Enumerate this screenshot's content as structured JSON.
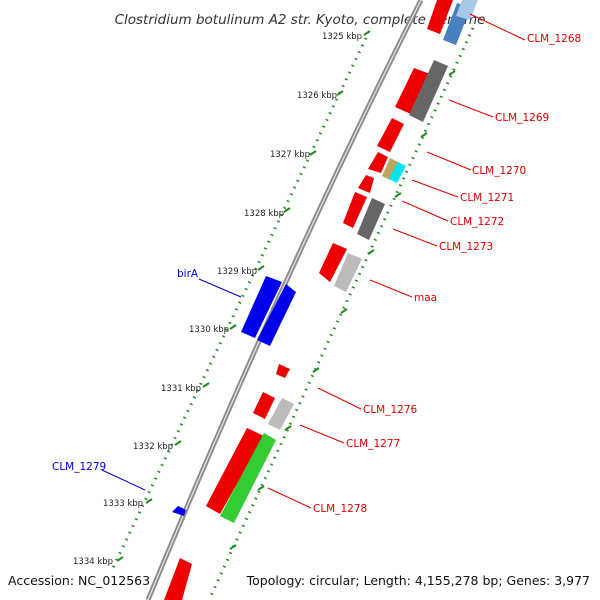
{
  "title": "Clostridium botulinum A2 str. Kyoto, complete genome",
  "accession": "Accession: NC_012563",
  "topology": "Topology: circular; Length: 4,155,278 bp; Genes: 3,977",
  "colors": {
    "backbone": "#8c8c8c",
    "tick_dots": "#228b22",
    "label_red": "#dd0000",
    "label_blue": "#0000cc",
    "gene_red": "#ee0000",
    "gene_dark_gray": "#666666",
    "gene_light_gray": "#bbbbbb",
    "gene_blue": "#0000ee",
    "gene_steel_blue": "#4a7fc0",
    "gene_green": "#33cc33",
    "gene_cyan": "#00e5ee",
    "gene_khaki": "#b8a860"
  },
  "kbp_ticks": [
    "1325 kbp",
    "1326 kbp",
    "1327 kbp",
    "1328 kbp",
    "1329 kbp",
    "1330 kbp",
    "1331 kbp",
    "1332 kbp",
    "1333 kbp",
    "1334 kbp"
  ],
  "gene_labels": [
    {
      "id": "clm1268",
      "text": "CLM_1268",
      "color": "red"
    },
    {
      "id": "clm1269",
      "text": "CLM_1269",
      "color": "red"
    },
    {
      "id": "clm1270",
      "text": "CLM_1270",
      "color": "red"
    },
    {
      "id": "clm1271",
      "text": "CLM_1271",
      "color": "red"
    },
    {
      "id": "clm1272",
      "text": "CLM_1272",
      "color": "red"
    },
    {
      "id": "clm1273",
      "text": "CLM_1273",
      "color": "red"
    },
    {
      "id": "maa",
      "text": "maa",
      "color": "red"
    },
    {
      "id": "clm1276",
      "text": "CLM_1276",
      "color": "red"
    },
    {
      "id": "clm1277",
      "text": "CLM_1277",
      "color": "red"
    },
    {
      "id": "clm1278",
      "text": "CLM_1278",
      "color": "red"
    },
    {
      "id": "bira",
      "text": "birA",
      "color": "blue"
    },
    {
      "id": "clm1279",
      "text": "CLM_1279",
      "color": "blue"
    }
  ]
}
